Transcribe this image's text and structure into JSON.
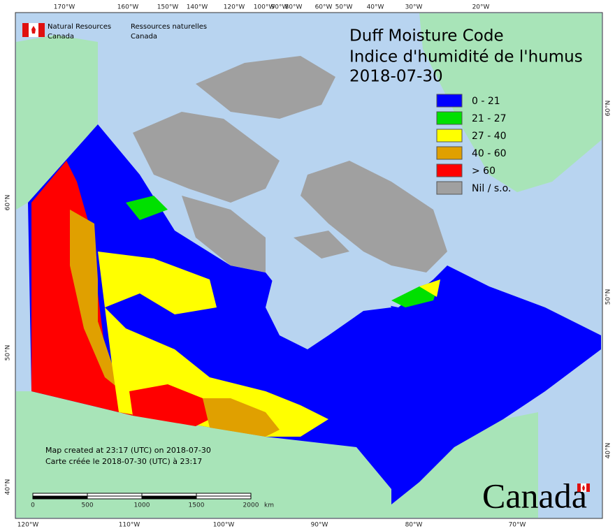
{
  "header": {
    "agency_en": [
      "Natural Resources",
      "Canada"
    ],
    "agency_fr": [
      "Ressources naturelles",
      "Canada"
    ]
  },
  "title": [
    "Duff Moisture Code",
    "Indice d'humidité de l'humus",
    "2018-07-30"
  ],
  "legend": [
    {
      "label": "0 - 21",
      "color": "#0000ff"
    },
    {
      "label": "21 - 27",
      "color": "#00e000"
    },
    {
      "label": "27 - 40",
      "color": "#ffff00"
    },
    {
      "label": "40 - 60",
      "color": "#e0a000"
    },
    {
      "label": "> 60",
      "color": "#ff0000"
    },
    {
      "label": "Nil / s.o.",
      "color": "#a0a0a0"
    }
  ],
  "graticule": {
    "top": [
      "170°W",
      "160°W",
      "150°W",
      "140°W",
      "120°W",
      "100°W",
      "90°W",
      "80°W",
      "60°W",
      "50°W",
      "40°W",
      "30°W",
      "20°W"
    ],
    "bottom": [
      "120°W",
      "110°W",
      "100°W",
      "90°W",
      "80°W",
      "70°W"
    ],
    "left": [
      "60°N",
      "50°N",
      "40°N"
    ],
    "right": [
      "60°N",
      "50°N",
      "40°N"
    ]
  },
  "scale_bar": {
    "labels": [
      "0",
      "500",
      "1000",
      "1500",
      "2000"
    ],
    "unit": "km"
  },
  "notes": [
    "Map created at 23:17 (UTC) on 2018-07-30",
    "Carte créée le 2018-07-30 (UTC) à 23:17"
  ],
  "wordmark": "Canada"
}
